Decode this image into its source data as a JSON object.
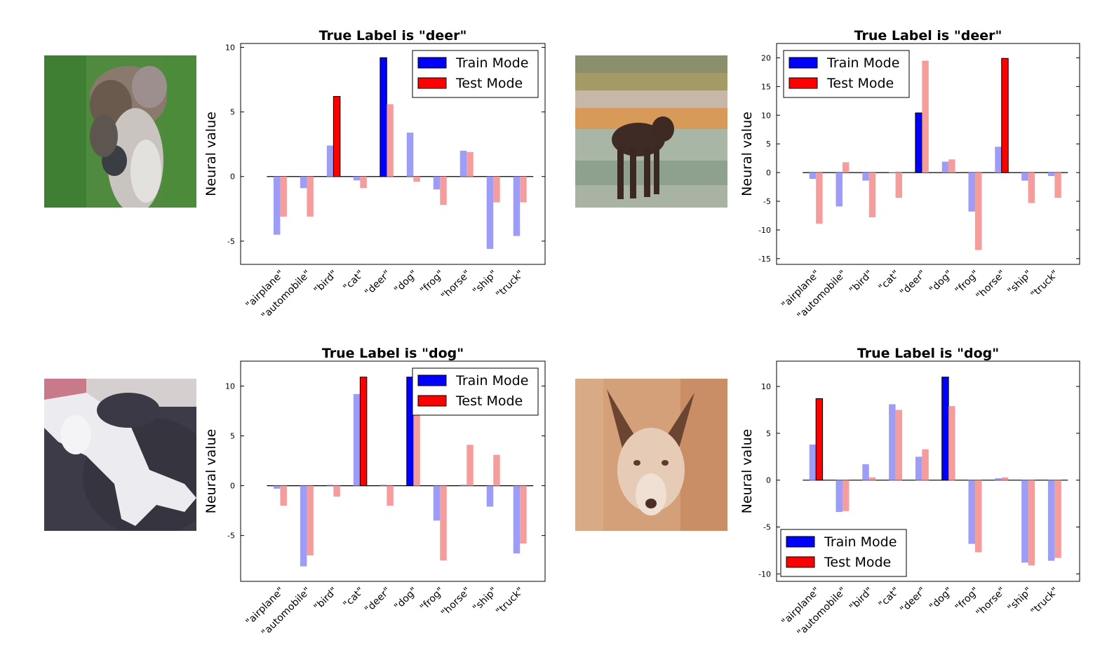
{
  "figure": {
    "categories": [
      "\"airplane\"",
      "\"automobile\"",
      "\"bird\"",
      "\"cat\"",
      "\"deer\"",
      "\"dog\"",
      "\"frog\"",
      "\"horse\"",
      "\"ship\"",
      "\"truck\""
    ],
    "ylabel": "Neural value",
    "legend": {
      "train": "Train Mode",
      "test": "Test Mode"
    },
    "colors": {
      "train": "#0000ff",
      "test": "#ff0000",
      "train_faded": "#9d9df5",
      "test_faded": "#f59d9d"
    }
  },
  "chart_data": [
    {
      "type": "bar",
      "title": "True Label is \"deer\"",
      "ylabel": "Neural value",
      "categories": [
        "\"airplane\"",
        "\"automobile\"",
        "\"bird\"",
        "\"cat\"",
        "\"deer\"",
        "\"dog\"",
        "\"frog\"",
        "\"horse\"",
        "\"ship\"",
        "\"truck\""
      ],
      "series": [
        {
          "name": "Train Mode",
          "values": [
            -4.5,
            -0.9,
            2.4,
            -0.3,
            9.2,
            3.4,
            -1.0,
            2.0,
            -5.6,
            -4.6
          ],
          "highlight": 4
        },
        {
          "name": "Test Mode",
          "values": [
            -3.1,
            -3.1,
            6.2,
            -0.9,
            5.6,
            -0.4,
            -2.2,
            1.9,
            -2.0,
            -2.0
          ],
          "highlight": 2
        }
      ],
      "ylim": [
        -6.8,
        10.3
      ],
      "yticks": [
        -5,
        0,
        5,
        10
      ],
      "legend_loc": "upper right",
      "image": "deer"
    },
    {
      "type": "bar",
      "title": "True Label is \"deer\"",
      "ylabel": "Neural value",
      "categories": [
        "\"airplane\"",
        "\"automobile\"",
        "\"bird\"",
        "\"cat\"",
        "\"deer\"",
        "\"dog\"",
        "\"frog\"",
        "\"horse\"",
        "\"ship\"",
        "\"truck\""
      ],
      "series": [
        {
          "name": "Train Mode",
          "values": [
            -1.1,
            -5.9,
            -1.4,
            0.1,
            10.4,
            1.9,
            -6.8,
            4.5,
            -1.4,
            -0.6
          ],
          "highlight": 4
        },
        {
          "name": "Test Mode",
          "values": [
            -8.9,
            1.8,
            -7.8,
            -4.4,
            19.5,
            2.3,
            -13.5,
            19.9,
            -5.3,
            -4.4
          ],
          "highlight": 7
        }
      ],
      "ylim": [
        -16.0,
        22.5
      ],
      "yticks": [
        -15,
        -10,
        -5,
        0,
        5,
        10,
        15,
        20
      ],
      "legend_loc": "upper left",
      "image": "moose"
    },
    {
      "type": "bar",
      "title": "True Label is \"dog\"",
      "ylabel": "Neural value",
      "categories": [
        "\"airplane\"",
        "\"automobile\"",
        "\"bird\"",
        "\"cat\"",
        "\"deer\"",
        "\"dog\"",
        "\"frog\"",
        "\"horse\"",
        "\"ship\"",
        "\"truck\""
      ],
      "series": [
        {
          "name": "Train Mode",
          "values": [
            -0.3,
            -8.1,
            0.1,
            9.2,
            0.1,
            10.9,
            -3.5,
            0.1,
            -2.1,
            -6.8
          ],
          "highlight": 5
        },
        {
          "name": "Test Mode",
          "values": [
            -2.0,
            -7.0,
            -1.1,
            10.9,
            -2.0,
            7.1,
            -7.5,
            4.1,
            3.1,
            -5.8
          ],
          "highlight": 3
        }
      ],
      "ylim": [
        -9.6,
        12.5
      ],
      "yticks": [
        -5,
        0,
        5,
        10
      ],
      "legend_loc": "upper right",
      "image": "cat"
    },
    {
      "type": "bar",
      "title": "True Label is \"dog\"",
      "ylabel": "Neural value",
      "categories": [
        "\"airplane\"",
        "\"automobile\"",
        "\"bird\"",
        "\"cat\"",
        "\"deer\"",
        "\"dog\"",
        "\"frog\"",
        "\"horse\"",
        "\"ship\"",
        "\"truck\""
      ],
      "series": [
        {
          "name": "Train Mode",
          "values": [
            3.8,
            -3.4,
            1.7,
            8.1,
            2.5,
            11.0,
            -6.8,
            0.2,
            -8.8,
            -8.6
          ],
          "highlight": 5
        },
        {
          "name": "Test Mode",
          "values": [
            8.7,
            -3.3,
            0.3,
            7.5,
            3.3,
            7.9,
            -7.7,
            0.3,
            -9.1,
            -8.3
          ],
          "highlight": 0
        }
      ],
      "ylim": [
        -10.8,
        12.7
      ],
      "yticks": [
        -10,
        -5,
        0,
        5,
        10
      ],
      "legend_loc": "lower left",
      "image": "dog"
    }
  ]
}
